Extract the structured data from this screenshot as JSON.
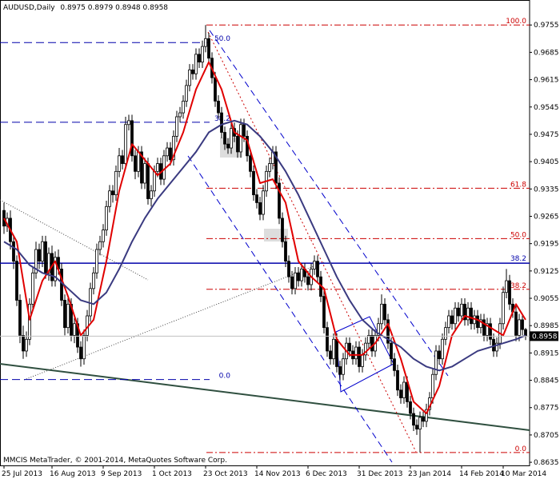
{
  "chart_data": {
    "type": "candlestick",
    "title": "AUDUSD,Daily",
    "footer": "MMCIS MetaTrader, © 2001-2014, MetaQuotes Software Corp.",
    "ylim": [
      0.8627,
      0.9819
    ],
    "yticks": [
      0.9755,
      0.9685,
      0.9615,
      0.9545,
      0.9475,
      0.9405,
      0.9335,
      0.9265,
      0.9195,
      0.9125,
      0.9055,
      0.8985,
      0.8915,
      0.8845,
      0.8775,
      0.8705,
      0.8635
    ],
    "xticks": [
      {
        "value": 0,
        "label": "25 Jul 2013"
      },
      {
        "value": 15,
        "label": "16 Aug 2013"
      },
      {
        "value": 31,
        "label": "9 Sep 2013"
      },
      {
        "value": 47,
        "label": "1 Oct 2013"
      },
      {
        "value": 63,
        "label": "23 Oct 2013"
      },
      {
        "value": 79,
        "label": "14 Nov 2013"
      },
      {
        "value": 95,
        "label": "6 Dec 2013"
      },
      {
        "value": 111,
        "label": "31 Dec 2013"
      },
      {
        "value": 127,
        "label": "23 Jan 2014"
      },
      {
        "value": 143,
        "label": "14 Feb 2014"
      },
      {
        "value": 156,
        "label": "10 Mar 2014"
      }
    ],
    "candle_color": "#000000",
    "candles": [
      [
        0.928,
        0.93,
        0.922,
        0.924
      ],
      [
        0.924,
        0.9275,
        0.9225,
        0.926
      ],
      [
        0.926,
        0.928,
        0.918,
        0.92
      ],
      [
        0.92,
        0.9215,
        0.913,
        0.915
      ],
      [
        0.915,
        0.9165,
        0.9035,
        0.905
      ],
      [
        0.905,
        0.9065,
        0.894,
        0.896
      ],
      [
        0.896,
        0.8985,
        0.89,
        0.892
      ],
      [
        0.892,
        0.897,
        0.8905,
        0.895
      ],
      [
        0.895,
        0.9055,
        0.8935,
        0.904
      ],
      [
        0.904,
        0.9135,
        0.9025,
        0.912
      ],
      [
        0.912,
        0.92,
        0.9105,
        0.918
      ],
      [
        0.918,
        0.9195,
        0.913,
        0.915
      ],
      [
        0.915,
        0.9215,
        0.9135,
        0.92
      ],
      [
        0.92,
        0.9215,
        0.9105,
        0.912
      ],
      [
        0.912,
        0.9185,
        0.91,
        0.917
      ],
      [
        0.917,
        0.919,
        0.9085,
        0.91
      ],
      [
        0.91,
        0.9175,
        0.9085,
        0.916
      ],
      [
        0.916,
        0.918,
        0.9115,
        0.913
      ],
      [
        0.913,
        0.9145,
        0.9035,
        0.905
      ],
      [
        0.905,
        0.9065,
        0.896,
        0.898
      ],
      [
        0.898,
        0.9055,
        0.8965,
        0.904
      ],
      [
        0.904,
        0.9055,
        0.8945,
        0.896
      ],
      [
        0.896,
        0.9005,
        0.894,
        0.899
      ],
      [
        0.899,
        0.9005,
        0.8915,
        0.893
      ],
      [
        0.893,
        0.8945,
        0.888,
        0.89
      ],
      [
        0.89,
        0.8975,
        0.8885,
        0.896
      ],
      [
        0.896,
        0.9025,
        0.8945,
        0.901
      ],
      [
        0.901,
        0.9095,
        0.8995,
        0.908
      ],
      [
        0.908,
        0.9135,
        0.9065,
        0.912
      ],
      [
        0.912,
        0.9195,
        0.9105,
        0.918
      ],
      [
        0.918,
        0.9215,
        0.9165,
        0.92
      ],
      [
        0.92,
        0.9245,
        0.9185,
        0.923
      ],
      [
        0.923,
        0.9305,
        0.9215,
        0.929
      ],
      [
        0.929,
        0.9345,
        0.9275,
        0.933
      ],
      [
        0.933,
        0.9345,
        0.93,
        0.932
      ],
      [
        0.932,
        0.9395,
        0.9305,
        0.938
      ],
      [
        0.938,
        0.944,
        0.9365,
        0.942
      ],
      [
        0.942,
        0.9435,
        0.9385,
        0.94
      ],
      [
        0.94,
        0.952,
        0.9385,
        0.95
      ],
      [
        0.95,
        0.9525,
        0.9485,
        0.951
      ],
      [
        0.951,
        0.9525,
        0.9405,
        0.942
      ],
      [
        0.942,
        0.9435,
        0.936,
        0.938
      ],
      [
        0.938,
        0.9445,
        0.9365,
        0.943
      ],
      [
        0.943,
        0.9445,
        0.9335,
        0.935
      ],
      [
        0.935,
        0.9415,
        0.9335,
        0.94
      ],
      [
        0.94,
        0.9415,
        0.9295,
        0.931
      ],
      [
        0.931,
        0.9345,
        0.929,
        0.933
      ],
      [
        0.933,
        0.9395,
        0.9315,
        0.938
      ],
      [
        0.938,
        0.9415,
        0.9365,
        0.94
      ],
      [
        0.94,
        0.9415,
        0.9345,
        0.936
      ],
      [
        0.936,
        0.9435,
        0.9345,
        0.942
      ],
      [
        0.942,
        0.9455,
        0.9405,
        0.944
      ],
      [
        0.944,
        0.9455,
        0.9395,
        0.941
      ],
      [
        0.941,
        0.9485,
        0.9395,
        0.947
      ],
      [
        0.947,
        0.9535,
        0.9455,
        0.952
      ],
      [
        0.952,
        0.9545,
        0.9505,
        0.953
      ],
      [
        0.953,
        0.9575,
        0.9515,
        0.956
      ],
      [
        0.956,
        0.9615,
        0.9545,
        0.96
      ],
      [
        0.96,
        0.9655,
        0.9585,
        0.964
      ],
      [
        0.964,
        0.9655,
        0.9615,
        0.963
      ],
      [
        0.963,
        0.9695,
        0.9615,
        0.968
      ],
      [
        0.968,
        0.9695,
        0.9645,
        0.966
      ],
      [
        0.966,
        0.9715,
        0.9645,
        0.97
      ],
      [
        0.97,
        0.9755,
        0.9685,
        0.972
      ],
      [
        0.972,
        0.9735,
        0.9655,
        0.967
      ],
      [
        0.967,
        0.9685,
        0.9605,
        0.962
      ],
      [
        0.962,
        0.9635,
        0.9545,
        0.956
      ],
      [
        0.956,
        0.9575,
        0.9515,
        0.953
      ],
      [
        0.953,
        0.9545,
        0.9465,
        0.948
      ],
      [
        0.948,
        0.9495,
        0.9435,
        0.945
      ],
      [
        0.945,
        0.9465,
        0.9425,
        0.944
      ],
      [
        0.944,
        0.9505,
        0.9425,
        0.949
      ],
      [
        0.949,
        0.9505,
        0.9455,
        0.947
      ],
      [
        0.947,
        0.9485,
        0.9415,
        0.943
      ],
      [
        0.943,
        0.9515,
        0.9415,
        0.95
      ],
      [
        0.95,
        0.9515,
        0.9455,
        0.947
      ],
      [
        0.947,
        0.9485,
        0.9405,
        0.942
      ],
      [
        0.942,
        0.9435,
        0.9365,
        0.938
      ],
      [
        0.938,
        0.9395,
        0.9305,
        0.932
      ],
      [
        0.932,
        0.9335,
        0.9285,
        0.93
      ],
      [
        0.93,
        0.9315,
        0.9255,
        0.927
      ],
      [
        0.927,
        0.9345,
        0.9255,
        0.933
      ],
      [
        0.933,
        0.9395,
        0.9315,
        0.938
      ],
      [
        0.938,
        0.9415,
        0.9365,
        0.94
      ],
      [
        0.94,
        0.9445,
        0.9385,
        0.943
      ],
      [
        0.943,
        0.9445,
        0.9335,
        0.935
      ],
      [
        0.935,
        0.9365,
        0.9245,
        0.926
      ],
      [
        0.926,
        0.9275,
        0.9185,
        0.92
      ],
      [
        0.92,
        0.9215,
        0.9135,
        0.915
      ],
      [
        0.915,
        0.9165,
        0.9095,
        0.911
      ],
      [
        0.911,
        0.9125,
        0.9065,
        0.908
      ],
      [
        0.908,
        0.9135,
        0.9065,
        0.912
      ],
      [
        0.912,
        0.9135,
        0.9085,
        0.91
      ],
      [
        0.91,
        0.9145,
        0.9085,
        0.913
      ],
      [
        0.913,
        0.9145,
        0.9095,
        0.911
      ],
      [
        0.911,
        0.9125,
        0.9075,
        0.909
      ],
      [
        0.909,
        0.9145,
        0.9075,
        0.913
      ],
      [
        0.913,
        0.9165,
        0.9115,
        0.915
      ],
      [
        0.915,
        0.9165,
        0.9095,
        0.911
      ],
      [
        0.911,
        0.9125,
        0.9045,
        0.906
      ],
      [
        0.906,
        0.9075,
        0.8965,
        0.898
      ],
      [
        0.898,
        0.8995,
        0.8905,
        0.892
      ],
      [
        0.892,
        0.8935,
        0.8885,
        0.89
      ],
      [
        0.89,
        0.8965,
        0.8885,
        0.895
      ],
      [
        0.895,
        0.8965,
        0.8865,
        0.888
      ],
      [
        0.888,
        0.8895,
        0.8845,
        0.886
      ],
      [
        0.886,
        0.8915,
        0.8845,
        0.89
      ],
      [
        0.89,
        0.8955,
        0.8885,
        0.894
      ],
      [
        0.894,
        0.8955,
        0.8905,
        0.892
      ],
      [
        0.892,
        0.8935,
        0.8885,
        0.89
      ],
      [
        0.89,
        0.8945,
        0.8885,
        0.893
      ],
      [
        0.893,
        0.8945,
        0.8865,
        0.888
      ],
      [
        0.888,
        0.8925,
        0.8865,
        0.891
      ],
      [
        0.891,
        0.8955,
        0.8895,
        0.894
      ],
      [
        0.894,
        0.8975,
        0.8925,
        0.896
      ],
      [
        0.896,
        0.8975,
        0.8905,
        0.892
      ],
      [
        0.892,
        0.8975,
        0.8905,
        0.896
      ],
      [
        0.896,
        0.9005,
        0.8945,
        0.899
      ],
      [
        0.899,
        0.9065,
        0.8975,
        0.904
      ],
      [
        0.904,
        0.9055,
        0.8985,
        0.9
      ],
      [
        0.9,
        0.9015,
        0.8925,
        0.894
      ],
      [
        0.894,
        0.8955,
        0.8885,
        0.89
      ],
      [
        0.89,
        0.8915,
        0.8855,
        0.887
      ],
      [
        0.887,
        0.8885,
        0.8805,
        0.882
      ],
      [
        0.882,
        0.8835,
        0.8785,
        0.88
      ],
      [
        0.88,
        0.8855,
        0.8785,
        0.884
      ],
      [
        0.884,
        0.8855,
        0.8775,
        0.879
      ],
      [
        0.879,
        0.8805,
        0.8745,
        0.876
      ],
      [
        0.876,
        0.8775,
        0.8715,
        0.873
      ],
      [
        0.873,
        0.8745,
        0.8705,
        0.872
      ],
      [
        0.872,
        0.8765,
        0.866,
        0.875
      ],
      [
        0.875,
        0.8765,
        0.8725,
        0.874
      ],
      [
        0.874,
        0.8785,
        0.8725,
        0.877
      ],
      [
        0.877,
        0.8815,
        0.8755,
        0.88
      ],
      [
        0.88,
        0.8875,
        0.8785,
        0.886
      ],
      [
        0.886,
        0.8935,
        0.8845,
        0.892
      ],
      [
        0.892,
        0.8935,
        0.8885,
        0.89
      ],
      [
        0.89,
        0.8965,
        0.8885,
        0.895
      ],
      [
        0.895,
        0.8995,
        0.8935,
        0.898
      ],
      [
        0.898,
        0.9025,
        0.8965,
        0.901
      ],
      [
        0.901,
        0.9025,
        0.8975,
        0.899
      ],
      [
        0.899,
        0.9045,
        0.8975,
        0.903
      ],
      [
        0.903,
        0.9045,
        0.8995,
        0.901
      ],
      [
        0.901,
        0.9055,
        0.8995,
        0.904
      ],
      [
        0.904,
        0.9055,
        0.8985,
        0.9
      ],
      [
        0.9,
        0.9045,
        0.8985,
        0.903
      ],
      [
        0.903,
        0.9045,
        0.8975,
        0.899
      ],
      [
        0.899,
        0.9025,
        0.8975,
        0.901
      ],
      [
        0.901,
        0.9025,
        0.8965,
        0.898
      ],
      [
        0.898,
        0.9015,
        0.8965,
        0.9
      ],
      [
        0.9,
        0.9015,
        0.8945,
        0.896
      ],
      [
        0.896,
        0.9005,
        0.8945,
        0.899
      ],
      [
        0.899,
        0.9005,
        0.8935,
        0.895
      ],
      [
        0.895,
        0.8965,
        0.8905,
        0.892
      ],
      [
        0.892,
        0.8955,
        0.8905,
        0.894
      ],
      [
        0.894,
        0.9005,
        0.8925,
        0.899
      ],
      [
        0.899,
        0.9085,
        0.8975,
        0.907
      ],
      [
        0.907,
        0.913,
        0.9055,
        0.91
      ],
      [
        0.91,
        0.9115,
        0.9025,
        0.904
      ],
      [
        0.904,
        0.9055,
        0.9005,
        0.902
      ],
      [
        0.902,
        0.9035,
        0.8945,
        0.896
      ],
      [
        0.896,
        0.9015,
        0.8945,
        0.9
      ],
      [
        0.9,
        0.9015,
        0.896,
        0.8975
      ],
      [
        0.8975,
        0.8979,
        0.8948,
        0.8958
      ]
    ],
    "moving_averages": [
      {
        "color": "#e00000",
        "x": [
          0,
          4,
          8,
          12,
          16,
          20,
          24,
          28,
          32,
          36,
          40,
          44,
          48,
          52,
          56,
          60,
          64,
          68,
          72,
          76,
          80,
          84,
          88,
          92,
          96,
          100,
          104,
          108,
          112,
          116,
          120,
          124,
          128,
          132,
          136,
          140,
          144,
          148,
          152,
          156,
          160,
          163
        ],
        "values": [
          0.926,
          0.92,
          0.9,
          0.91,
          0.915,
          0.906,
          0.896,
          0.9,
          0.915,
          0.933,
          0.945,
          0.941,
          0.937,
          0.94,
          0.948,
          0.959,
          0.966,
          0.959,
          0.948,
          0.946,
          0.935,
          0.936,
          0.93,
          0.915,
          0.911,
          0.908,
          0.895,
          0.891,
          0.891,
          0.894,
          0.899,
          0.89,
          0.879,
          0.876,
          0.883,
          0.896,
          0.901,
          0.9,
          0.898,
          0.896,
          0.904,
          0.9
        ]
      },
      {
        "color": "#3a3a80",
        "x": [
          0,
          4,
          8,
          12,
          16,
          20,
          24,
          28,
          32,
          36,
          40,
          44,
          48,
          52,
          56,
          60,
          64,
          68,
          72,
          76,
          80,
          84,
          88,
          92,
          96,
          100,
          104,
          108,
          112,
          116,
          120,
          124,
          128,
          132,
          136,
          140,
          144,
          148,
          152,
          156,
          160,
          163
        ],
        "values": [
          0.92,
          0.918,
          0.914,
          0.912,
          0.911,
          0.908,
          0.905,
          0.904,
          0.907,
          0.913,
          0.92,
          0.926,
          0.931,
          0.935,
          0.939,
          0.943,
          0.948,
          0.95,
          0.951,
          0.95,
          0.947,
          0.943,
          0.938,
          0.932,
          0.925,
          0.918,
          0.911,
          0.905,
          0.9,
          0.897,
          0.895,
          0.893,
          0.89,
          0.888,
          0.887,
          0.888,
          0.89,
          0.892,
          0.893,
          0.894,
          0.895,
          0.896
        ]
      }
    ],
    "fib_right": {
      "color": "#cc0000",
      "levels": [
        {
          "label": "100.0",
          "price": 0.9755
        },
        {
          "label": "61.8",
          "price": 0.9337
        },
        {
          "label": "50.0",
          "price": 0.9208
        },
        {
          "label": "38.2",
          "price": 0.9078
        },
        {
          "label": "0.0",
          "price": 0.866
        }
      ]
    },
    "fib_left": {
      "color": "#0000aa",
      "levels": [
        {
          "label": "50.0",
          "price": 0.971
        },
        {
          "label": "38.2",
          "price": 0.9506
        },
        {
          "label": "0.0",
          "price": 0.8847
        }
      ]
    },
    "horizontal_line": {
      "color": "#0000aa",
      "label": "38.2",
      "price": 0.9145
    }
  }
}
